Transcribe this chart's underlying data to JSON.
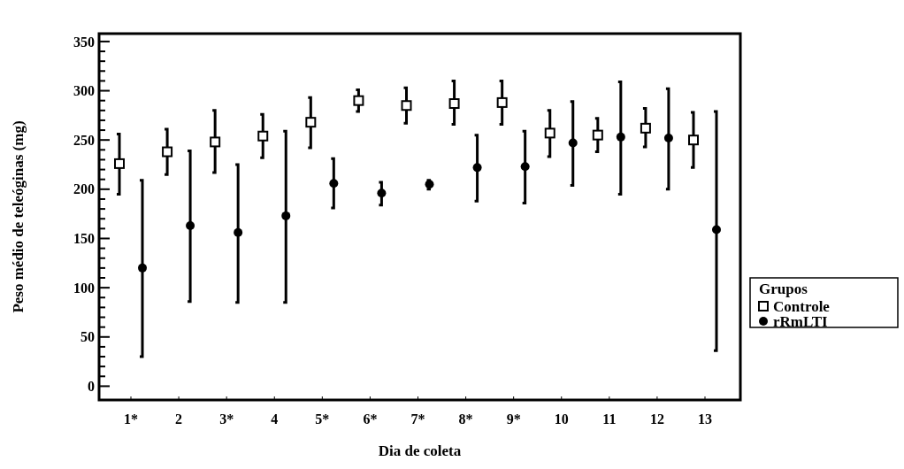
{
  "chart_data": {
    "type": "scatter",
    "xlabel": "Dia de coleta",
    "ylabel": "Peso médio de teleóginas (mg)",
    "legend_title": "Grupos",
    "legend": "right",
    "grid": false,
    "categories": [
      "1*",
      "2",
      "3*",
      "4",
      "5*",
      "6*",
      "7*",
      "8*",
      "9*",
      "10",
      "11",
      "12",
      "13"
    ],
    "ylim": [
      -14,
      358
    ],
    "yticks": [
      0,
      {
        "value": 10,
        "label": null
      },
      {
        "value": 20,
        "label": null
      },
      {
        "value": 30,
        "label": null
      },
      {
        "value": 40,
        "label": null
      },
      50,
      {
        "value": 60,
        "label": null
      },
      {
        "value": 70,
        "label": null
      },
      {
        "value": 80,
        "label": null
      },
      {
        "value": 90,
        "label": null
      },
      100,
      {
        "value": 110,
        "label": null
      },
      {
        "value": 120,
        "label": null
      },
      {
        "value": 130,
        "label": null
      },
      {
        "value": 140,
        "label": null
      },
      150,
      {
        "value": 160,
        "label": null
      },
      {
        "value": 170,
        "label": null
      },
      {
        "value": 180,
        "label": null
      },
      {
        "value": 190,
        "label": null
      },
      200,
      {
        "value": 210,
        "label": null
      },
      {
        "value": 220,
        "label": null
      },
      {
        "value": 230,
        "label": null
      },
      {
        "value": 240,
        "label": null
      },
      250,
      {
        "value": 260,
        "label": null
      },
      {
        "value": 270,
        "label": null
      },
      {
        "value": 280,
        "label": null
      },
      {
        "value": 290,
        "label": null
      },
      300,
      {
        "value": 310,
        "label": null
      },
      {
        "value": 320,
        "label": null
      },
      {
        "value": 330,
        "label": null
      },
      {
        "value": 340,
        "label": null
      },
      350
    ],
    "series": [
      {
        "name": "Controle",
        "color": "#000000",
        "marker": "square",
        "values": [
          226,
          238,
          248,
          254,
          268,
          290,
          285,
          287,
          288,
          257,
          255,
          262,
          250
        ],
        "errors": [
          [
            195,
            256
          ],
          [
            215,
            261
          ],
          [
            217,
            280
          ],
          [
            232,
            276
          ],
          [
            242,
            293
          ],
          [
            279,
            301
          ],
          [
            267,
            303
          ],
          [
            266,
            310
          ],
          [
            266,
            310
          ],
          [
            233,
            280
          ],
          [
            238,
            272
          ],
          [
            243,
            282
          ],
          [
            222,
            278
          ]
        ]
      },
      {
        "name": "rRmLTI",
        "color": "#000000",
        "marker": "circle",
        "values": [
          120,
          163,
          156,
          173,
          206,
          196,
          205,
          222,
          223,
          247,
          253,
          252,
          159
        ],
        "errors": [
          [
            30,
            209
          ],
          [
            86,
            239
          ],
          [
            85,
            225
          ],
          [
            85,
            259
          ],
          [
            181,
            231
          ],
          [
            184,
            207
          ],
          [
            200,
            209
          ],
          [
            188,
            255
          ],
          [
            186,
            259
          ],
          [
            204,
            289
          ],
          [
            195,
            309
          ],
          [
            200,
            302
          ],
          [
            36,
            279
          ]
        ]
      }
    ]
  }
}
